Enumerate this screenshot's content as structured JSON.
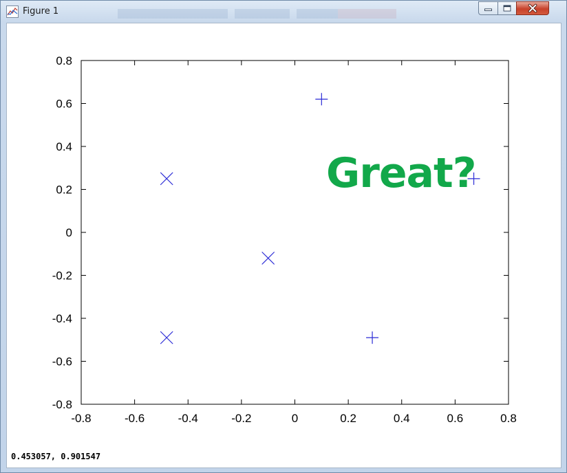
{
  "window": {
    "title": "Figure 1",
    "icon": "figure-chart-icon",
    "controls": [
      "minimize-icon",
      "maximize-icon",
      "close-icon"
    ]
  },
  "statusbar": {
    "coords": "0.453057, 0.901547"
  },
  "annotation": {
    "text": "Great?",
    "color": "#12a84a"
  },
  "chart_data": {
    "type": "scatter",
    "title": "",
    "xlabel": "",
    "ylabel": "",
    "xlim": [
      -0.8,
      0.8
    ],
    "ylim": [
      -0.8,
      0.8
    ],
    "xticks": [
      -0.8,
      -0.6,
      -0.4,
      -0.2,
      0,
      0.2,
      0.4,
      0.6,
      0.8
    ],
    "yticks": [
      -0.8,
      -0.6,
      -0.4,
      -0.2,
      0,
      0.2,
      0.4,
      0.6,
      0.8
    ],
    "xtick_labels": [
      "-0.8",
      "-0.6",
      "-0.4",
      "-0.2",
      "0",
      "0.2",
      "0.4",
      "0.6",
      "0.8"
    ],
    "ytick_labels": [
      "-0.8",
      "-0.6",
      "-0.4",
      "-0.2",
      "0",
      "0.2",
      "0.4",
      "0.6",
      "0.8"
    ],
    "grid": false,
    "marker_color": "#2b2bd6",
    "series": [
      {
        "marker": "x",
        "points": [
          {
            "x": -0.48,
            "y": 0.25
          },
          {
            "x": -0.1,
            "y": -0.12
          },
          {
            "x": -0.48,
            "y": -0.49
          }
        ]
      },
      {
        "marker": "+",
        "points": [
          {
            "x": 0.1,
            "y": 0.62
          },
          {
            "x": 0.67,
            "y": 0.25
          },
          {
            "x": 0.29,
            "y": -0.49
          }
        ]
      }
    ]
  }
}
